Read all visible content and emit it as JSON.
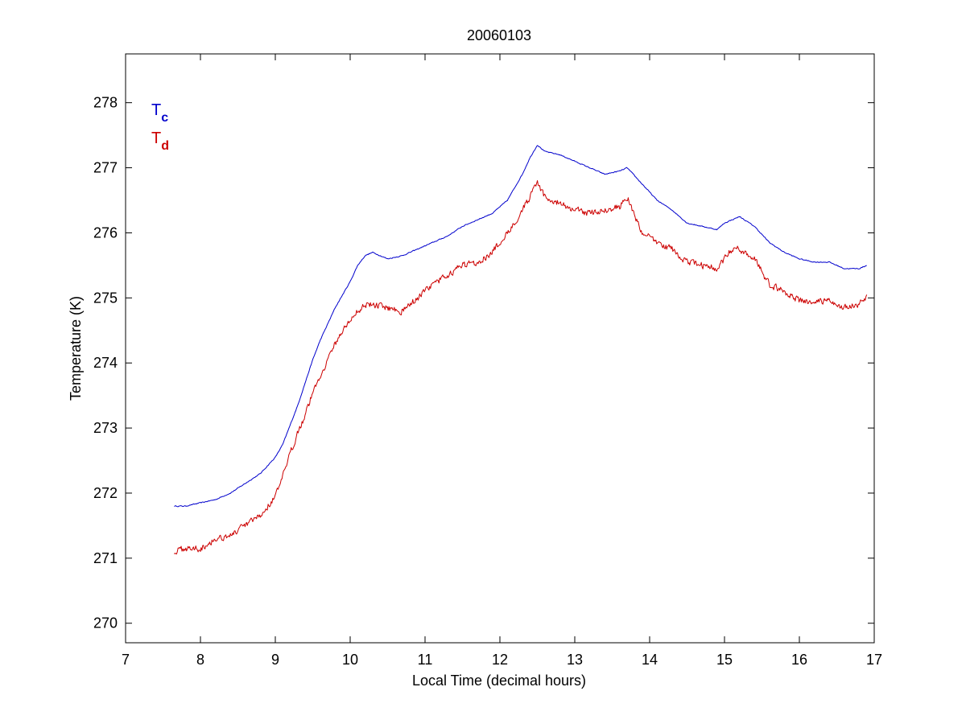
{
  "chart_data": {
    "type": "line",
    "title": "20060103",
    "xlabel": "Local Time (decimal hours)",
    "ylabel": "Temperature (K)",
    "xlim": [
      7,
      17
    ],
    "ylim": [
      269.7,
      278.75
    ],
    "xticks": [
      7,
      8,
      9,
      10,
      11,
      12,
      13,
      14,
      15,
      16,
      17
    ],
    "yticks": [
      270,
      271,
      272,
      273,
      274,
      275,
      276,
      277,
      278
    ],
    "grid": false,
    "legend": {
      "placement": "top-left",
      "style": "text-labels"
    },
    "series": [
      {
        "name": "Tc",
        "label_main": "T",
        "label_sub": "c",
        "color": "#0000cc",
        "noise": 0.01,
        "x": [
          7.65,
          7.8,
          8.0,
          8.2,
          8.4,
          8.6,
          8.8,
          9.0,
          9.1,
          9.2,
          9.3,
          9.4,
          9.5,
          9.6,
          9.7,
          9.8,
          9.9,
          10.0,
          10.1,
          10.2,
          10.3,
          10.5,
          10.7,
          10.9,
          11.1,
          11.3,
          11.5,
          11.7,
          11.9,
          12.1,
          12.3,
          12.4,
          12.5,
          12.6,
          12.8,
          13.0,
          13.2,
          13.4,
          13.6,
          13.7,
          13.9,
          14.1,
          14.3,
          14.5,
          14.7,
          14.9,
          15.0,
          15.1,
          15.2,
          15.4,
          15.6,
          15.8,
          16.0,
          16.2,
          16.4,
          16.6,
          16.8,
          16.9
        ],
        "y": [
          271.8,
          271.8,
          271.85,
          271.9,
          272.0,
          272.15,
          272.3,
          272.55,
          272.75,
          273.05,
          273.35,
          273.7,
          274.05,
          274.35,
          274.6,
          274.85,
          275.05,
          275.25,
          275.5,
          275.65,
          275.7,
          275.6,
          275.65,
          275.75,
          275.85,
          275.95,
          276.1,
          276.2,
          276.3,
          276.5,
          276.9,
          277.15,
          277.35,
          277.25,
          277.2,
          277.1,
          277.0,
          276.9,
          276.95,
          277.0,
          276.75,
          276.5,
          276.35,
          276.15,
          276.1,
          276.05,
          276.15,
          276.2,
          276.25,
          276.1,
          275.85,
          275.7,
          275.6,
          275.55,
          275.55,
          275.45,
          275.45,
          275.5
        ]
      },
      {
        "name": "Td",
        "label_main": "T",
        "label_sub": "d",
        "color": "#cc0000",
        "noise": 0.07,
        "x": [
          7.65,
          7.8,
          8.0,
          8.2,
          8.4,
          8.6,
          8.8,
          9.0,
          9.1,
          9.2,
          9.3,
          9.4,
          9.5,
          9.6,
          9.7,
          9.8,
          9.9,
          10.0,
          10.1,
          10.2,
          10.3,
          10.5,
          10.7,
          10.9,
          11.1,
          11.3,
          11.5,
          11.7,
          11.9,
          12.1,
          12.3,
          12.4,
          12.5,
          12.6,
          12.8,
          13.0,
          13.2,
          13.4,
          13.6,
          13.7,
          13.9,
          14.1,
          14.3,
          14.5,
          14.7,
          14.9,
          15.0,
          15.1,
          15.2,
          15.4,
          15.6,
          15.8,
          16.0,
          16.2,
          16.4,
          16.6,
          16.8,
          16.9
        ],
        "y": [
          271.1,
          271.15,
          271.15,
          271.3,
          271.35,
          271.5,
          271.65,
          271.95,
          272.25,
          272.6,
          272.95,
          273.2,
          273.55,
          273.8,
          274.05,
          274.3,
          274.5,
          274.65,
          274.8,
          274.9,
          274.9,
          274.85,
          274.8,
          275.0,
          275.2,
          275.35,
          275.5,
          275.55,
          275.7,
          276.0,
          276.35,
          276.55,
          276.75,
          276.55,
          276.45,
          276.35,
          276.3,
          276.35,
          276.4,
          276.55,
          276.0,
          275.85,
          275.75,
          275.55,
          275.5,
          275.45,
          275.6,
          275.75,
          275.75,
          275.6,
          275.2,
          275.1,
          274.95,
          274.95,
          274.95,
          274.85,
          274.9,
          275.0
        ]
      }
    ]
  }
}
